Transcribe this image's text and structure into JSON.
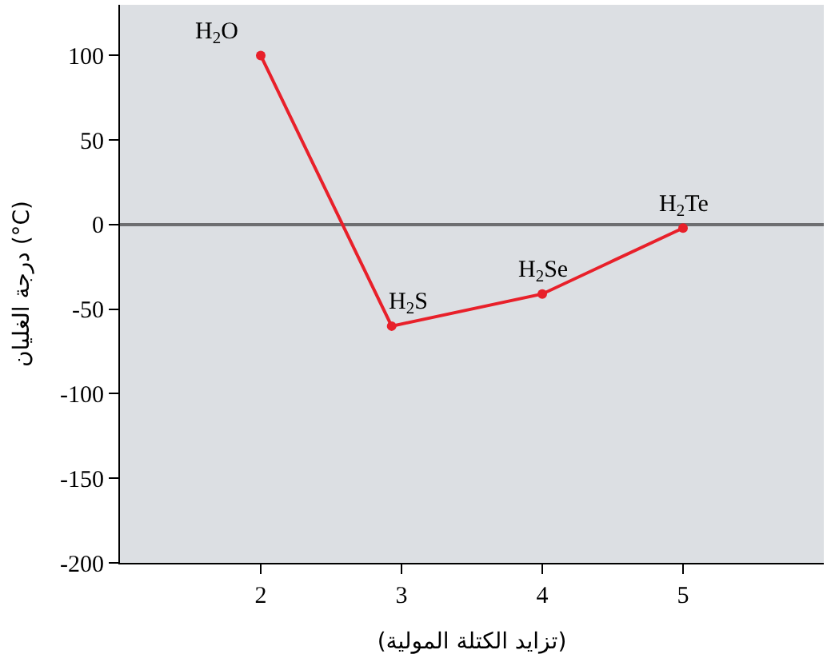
{
  "chart_data": {
    "type": "line",
    "xlabel": "(تزايد الكتلة المولية)",
    "ylabel": "درجة الغليان (°C)",
    "x": [
      2,
      2.93,
      4,
      5
    ],
    "series": [
      {
        "color": "#e8202a",
        "values": [
          100,
          -60,
          -41,
          -2
        ]
      }
    ],
    "xlim": [
      1,
      6
    ],
    "xticks": [
      2,
      3,
      4,
      5
    ],
    "ylim": [
      -200,
      130
    ],
    "yticks": [
      -200,
      -150,
      -100,
      -50,
      0,
      50,
      100
    ],
    "marker": "circle",
    "line_style": "solid",
    "grid": false,
    "legend": false,
    "ref_lines": [
      {
        "axis": "y",
        "value": 0,
        "color": "#6d6e71"
      }
    ],
    "annotations": [
      {
        "text": "H$_{2}$O",
        "x": 2,
        "y": 100
      },
      {
        "text": "H$_{2}$S",
        "x": 2.93,
        "y": -60
      },
      {
        "text": "H$_{2}$Se",
        "x": 4,
        "y": -41
      },
      {
        "text": "H$_{2}$Te",
        "x": 5,
        "y": -2
      }
    ]
  }
}
